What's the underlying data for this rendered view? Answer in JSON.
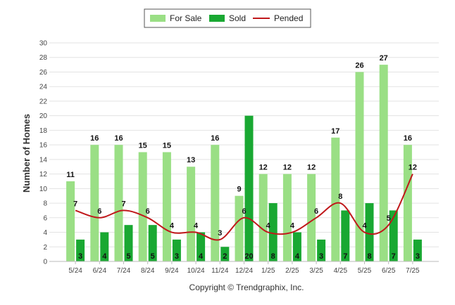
{
  "chart_data": {
    "type": "bar",
    "categories": [
      "5/24",
      "6/24",
      "7/24",
      "8/24",
      "9/24",
      "10/24",
      "11/24",
      "12/24",
      "1/25",
      "2/25",
      "3/25",
      "4/25",
      "5/25",
      "6/25",
      "7/25"
    ],
    "series": [
      {
        "name": "For Sale",
        "type": "bar",
        "color": "#9adf85",
        "values": [
          11,
          16,
          16,
          15,
          15,
          13,
          16,
          9,
          12,
          12,
          12,
          17,
          26,
          27,
          16
        ]
      },
      {
        "name": "Sold",
        "type": "bar",
        "color": "#19a832",
        "values": [
          3,
          4,
          5,
          5,
          3,
          4,
          2,
          20,
          8,
          4,
          3,
          7,
          8,
          7,
          3
        ]
      },
      {
        "name": "Pended",
        "type": "line",
        "color": "#c0181b",
        "values": [
          7,
          6,
          7,
          6,
          4,
          4,
          3,
          6,
          4,
          4,
          6,
          8,
          4,
          5,
          12
        ]
      }
    ],
    "title": "",
    "xlabel": "",
    "ylabel": "Number of Homes",
    "ylim": [
      0,
      30
    ],
    "yticks": [
      0,
      2,
      4,
      6,
      8,
      10,
      12,
      14,
      16,
      18,
      20,
      22,
      24,
      26,
      28,
      30
    ],
    "grid": true,
    "legend_position": "top-center"
  },
  "footer": {
    "copyright": "Copyright © Trendgraphix, Inc."
  }
}
